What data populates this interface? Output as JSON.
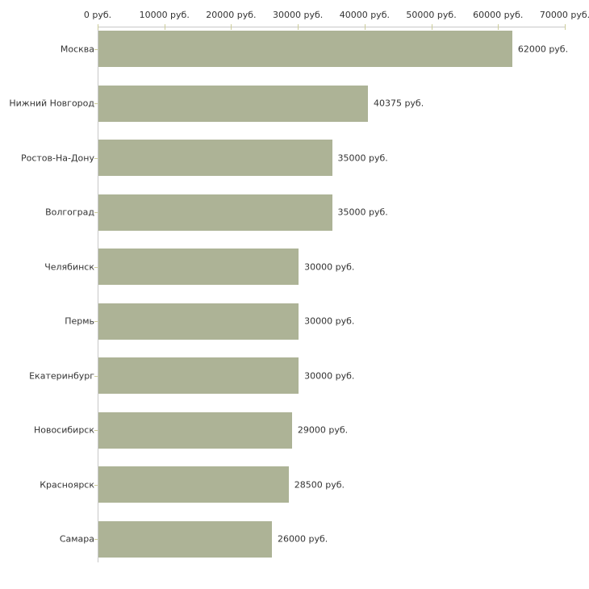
{
  "chart_data": {
    "type": "bar",
    "orientation": "horizontal",
    "title": "",
    "legend": "none",
    "grid": "off",
    "categories": [
      "Москва",
      "Нижний Новгород",
      "Ростов-На-Дону",
      "Волгоград",
      "Челябинск",
      "Пермь",
      "Екатеринбург",
      "Новосибирск",
      "Красноярск",
      "Самара"
    ],
    "values": [
      62000,
      40375,
      35000,
      35000,
      30000,
      30000,
      30000,
      29000,
      28500,
      26000
    ],
    "value_labels": [
      "62000 руб.",
      "40375 руб.",
      "35000 руб.",
      "35000 руб.",
      "30000 руб.",
      "30000 руб.",
      "30000 руб.",
      "29000 руб.",
      "28500 руб.",
      "26000 руб."
    ],
    "x_axis": {
      "position": "top",
      "unit": "руб.",
      "tick_values": [
        0,
        10000,
        20000,
        30000,
        40000,
        50000,
        60000,
        70000
      ],
      "tick_labels": [
        "0 руб.",
        "10000 руб.",
        "20000 руб.",
        "30000 руб.",
        "40000 руб.",
        "50000 руб.",
        "60000 руб.",
        "70000 руб."
      ],
      "range": [
        0,
        70000
      ]
    },
    "colors": {
      "bar": "#adb396",
      "axis_line": "#c8c8c8",
      "tick": "#cccc99",
      "text": "#333333",
      "background": "#ffffff"
    }
  }
}
